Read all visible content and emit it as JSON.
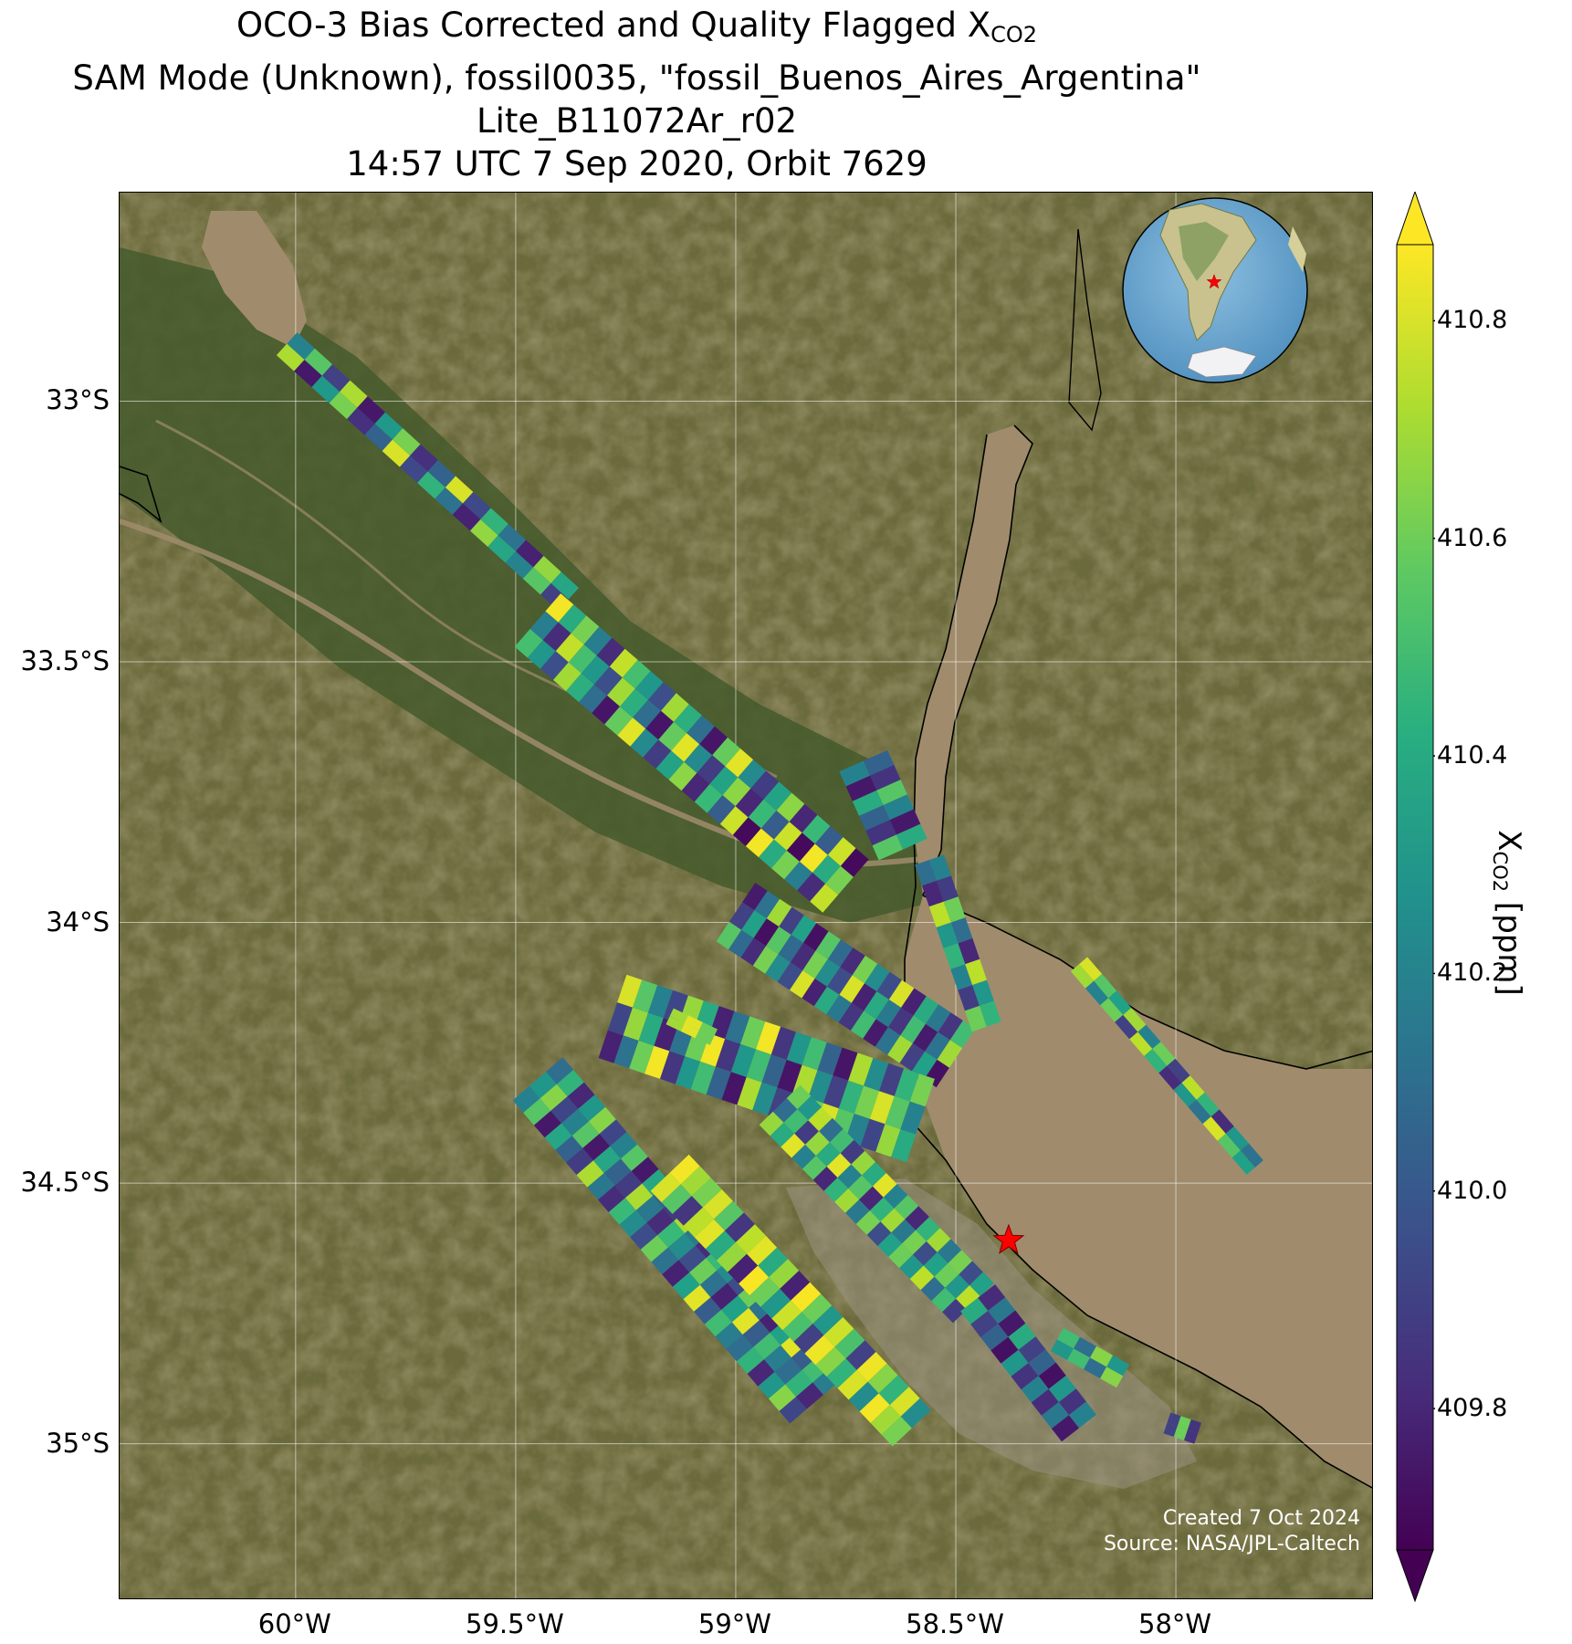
{
  "title": {
    "line1_prefix": "OCO-3 Bias Corrected and Quality Flagged X",
    "line1_sub": "CO2",
    "line2": "SAM Mode (Unknown), fossil0035, \"fossil_Buenos_Aires_Argentina\"",
    "line3": "Lite_B11072Ar_r02",
    "line4": "14:57 UTC 7 Sep 2020, Orbit 7629"
  },
  "map": {
    "extent": {
      "lon_min": -60.4,
      "lon_max": -57.55,
      "lat_min": -35.3,
      "lat_max": -32.6
    },
    "lat_ticks": [
      {
        "value": -33.0,
        "label": "33°S"
      },
      {
        "value": -33.5,
        "label": "33.5°S"
      },
      {
        "value": -34.0,
        "label": "34°S"
      },
      {
        "value": -34.5,
        "label": "34.5°S"
      },
      {
        "value": -35.0,
        "label": "35°S"
      }
    ],
    "lon_ticks": [
      {
        "value": -60.0,
        "label": "60°W"
      },
      {
        "value": -59.5,
        "label": "59.5°W"
      },
      {
        "value": -59.0,
        "label": "59°W"
      },
      {
        "value": -58.5,
        "label": "58.5°W"
      },
      {
        "value": -58.0,
        "label": "58°W"
      }
    ],
    "target": {
      "name": "fossil_Buenos_Aires_Argentina",
      "lon": -58.38,
      "lat": -34.61,
      "marker": "star",
      "color": "#ff0000"
    },
    "basemap": "satellite imagery",
    "colors": {
      "land": "#6b6a3c",
      "delta_wetland": "#455a2c",
      "river_water": "#a08c6c",
      "grid": "#ffffff",
      "coastline": "#000000"
    },
    "inset_globe": {
      "center": "South America",
      "marker": "star",
      "marker_color": "#ff0000"
    }
  },
  "credits": {
    "created": "Created 7 Oct 2024",
    "source": "Source: NASA/JPL-Caltech"
  },
  "colorbar": {
    "min": 409.67,
    "max": 410.87,
    "extend": "both",
    "colormap": "viridis",
    "ticks": [
      {
        "value": 409.8,
        "label": "409.8"
      },
      {
        "value": 410.0,
        "label": "410.0"
      },
      {
        "value": 410.2,
        "label": "410.2"
      },
      {
        "value": 410.4,
        "label": "410.4"
      },
      {
        "value": 410.6,
        "label": "410.6"
      },
      {
        "value": 410.8,
        "label": "410.8"
      }
    ],
    "label_prefix": "X",
    "label_sub": "CO2",
    "label_suffix": " [ppm]"
  },
  "chart_data": {
    "type": "heatmap",
    "variable": "XCO2 (ppm)",
    "swaths": [
      {
        "name": "swath-1",
        "lon_start": -60.02,
        "lat_start": -32.89,
        "lon_end": -59.38,
        "lat_end": -33.38,
        "width_deg": 0.07,
        "n": 16,
        "values": [
          410.21,
          410.55,
          409.9,
          410.72,
          409.75,
          410.31,
          410.62,
          409.84,
          410.05,
          410.8,
          409.93,
          410.45,
          410.12,
          409.78,
          410.67,
          410.38
        ]
      },
      {
        "name": "swath-2",
        "lon_start": -59.45,
        "lat_start": -33.42,
        "lon_end": -58.75,
        "lat_end": -33.93,
        "width_deg": 0.16,
        "n": 24,
        "values": [
          410.85,
          410.4,
          410.62,
          410.18,
          409.82,
          410.76,
          410.51,
          410.3,
          409.96,
          410.7,
          410.42,
          410.1,
          409.74,
          410.58,
          410.82,
          410.24,
          409.88,
          410.36,
          410.66,
          409.8,
          410.48,
          410.02,
          410.78,
          409.7
        ]
      },
      {
        "name": "swath-3",
        "lon_start": -58.71,
        "lat_start": -33.69,
        "lon_end": -58.62,
        "lat_end": -33.86,
        "width_deg": 0.12,
        "n": 6,
        "values": [
          410.05,
          409.85,
          410.55,
          410.2,
          409.75,
          410.4
        ]
      },
      {
        "name": "swath-4",
        "lon_start": -59.0,
        "lat_start": -33.98,
        "lon_end": -58.5,
        "lat_end": -34.26,
        "width_deg": 0.16,
        "n": 18,
        "values": [
          409.76,
          410.12,
          410.7,
          409.9,
          410.35,
          409.72,
          410.55,
          410.08,
          409.82,
          410.62,
          410.25,
          409.95,
          410.8,
          409.78,
          410.4,
          410.15,
          409.86,
          410.5
        ]
      },
      {
        "name": "swath-5",
        "lon_start": -58.56,
        "lat_start": -33.88,
        "lon_end": -58.43,
        "lat_end": -34.2,
        "width_deg": 0.07,
        "n": 8,
        "values": [
          410.2,
          409.88,
          410.6,
          410.1,
          409.8,
          410.75,
          410.3,
          410.45
        ]
      },
      {
        "name": "swath-6",
        "lon_start": -59.28,
        "lat_start": -34.18,
        "lon_end": -58.58,
        "lat_end": -34.38,
        "width_deg": 0.2,
        "n": 20,
        "values": [
          410.8,
          410.55,
          410.2,
          409.92,
          410.68,
          410.4,
          409.78,
          410.12,
          410.6,
          410.85,
          409.86,
          410.3,
          410.5,
          410.05,
          409.74,
          410.72,
          410.25,
          409.9,
          410.45,
          410.62
        ]
      },
      {
        "name": "swath-7",
        "lon_start": -59.45,
        "lat_start": -34.3,
        "lon_end": -58.82,
        "lat_end": -34.92,
        "width_deg": 0.15,
        "n": 26,
        "values": [
          410.1,
          410.45,
          409.8,
          410.3,
          410.65,
          409.92,
          410.2,
          410.55,
          409.75,
          410.38,
          410.05,
          409.88,
          410.72,
          410.15,
          409.82,
          410.48,
          410.25,
          409.95,
          410.6,
          410.12,
          409.78,
          410.35,
          410.82,
          410.02,
          410.5,
          410.18
        ]
      },
      {
        "name": "swath-8",
        "lon_start": -59.15,
        "lat_start": -34.48,
        "lon_end": -58.6,
        "lat_end": -34.97,
        "width_deg": 0.12,
        "n": 22,
        "values": [
          410.85,
          410.7,
          410.62,
          410.8,
          410.55,
          409.86,
          410.75,
          410.82,
          410.4,
          410.68,
          409.78,
          410.86,
          410.6,
          410.3,
          410.78,
          410.52,
          409.9,
          410.84,
          410.65,
          410.45,
          410.8,
          410.25
        ]
      },
      {
        "name": "swath-9",
        "lon_start": -58.9,
        "lat_start": -34.35,
        "lon_end": -58.46,
        "lat_end": -34.73,
        "width_deg": 0.13,
        "n": 18,
        "values": [
          410.6,
          410.3,
          410.75,
          410.1,
          410.5,
          409.88,
          410.68,
          410.4,
          410.82,
          410.2,
          410.55,
          409.8,
          410.45,
          410.7,
          410.15,
          410.62,
          409.95,
          410.35
        ]
      },
      {
        "name": "swath-10",
        "lon_start": -58.45,
        "lat_start": -34.72,
        "lon_end": -58.22,
        "lat_end": -34.97,
        "width_deg": 0.1,
        "n": 10,
        "values": [
          409.82,
          410.15,
          409.75,
          410.4,
          409.9,
          410.05,
          409.72,
          410.3,
          409.85,
          410.2
        ]
      },
      {
        "name": "swath-11",
        "lon_start": -58.27,
        "lat_start": -34.8,
        "lon_end": -58.12,
        "lat_end": -34.87,
        "width_deg": 0.06,
        "n": 4,
        "values": [
          410.5,
          410.1,
          410.65,
          410.3
        ]
      },
      {
        "name": "swath-12",
        "lon_start": -58.02,
        "lat_start": -34.96,
        "lon_end": -57.95,
        "lat_end": -34.98,
        "width_deg": 0.05,
        "n": 3,
        "values": [
          409.9,
          410.6,
          409.85
        ]
      },
      {
        "name": "swath-13",
        "lon_start": -58.22,
        "lat_start": -34.08,
        "lon_end": -57.82,
        "lat_end": -34.47,
        "width_deg": 0.05,
        "n": 12,
        "values": [
          410.8,
          410.55,
          410.35,
          410.7,
          410.2,
          410.6,
          409.9,
          410.75,
          410.45,
          409.82,
          410.3,
          410.12
        ]
      },
      {
        "name": "swath-14",
        "lon_start": -59.15,
        "lat_start": -34.18,
        "lon_end": -59.05,
        "lat_end": -34.22,
        "width_deg": 0.04,
        "n": 3,
        "values": [
          410.7,
          410.82,
          410.6
        ]
      }
    ]
  }
}
